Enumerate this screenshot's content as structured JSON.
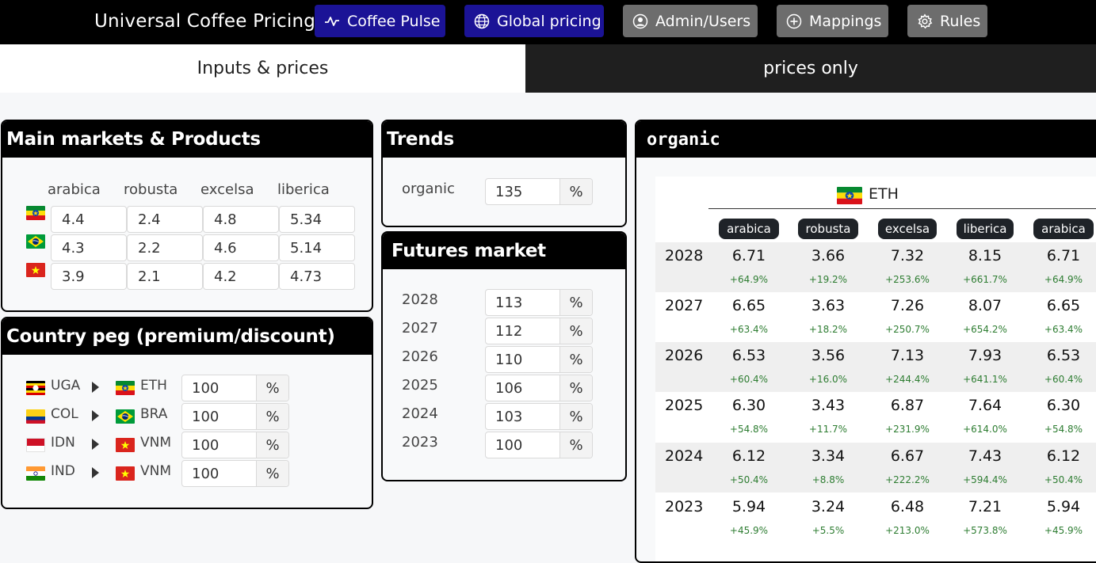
{
  "app": {
    "title": "Universal Coffee Pricing",
    "nav": [
      {
        "label": "Coffee Pulse",
        "icon": "pulse-icon",
        "style": "primary"
      },
      {
        "label": "Global pricing",
        "icon": "globe-icon",
        "style": "primary"
      },
      {
        "label": "Admin/Users",
        "icon": "user-icon",
        "style": "grey"
      },
      {
        "label": "Mappings",
        "icon": "plus-circle-icon",
        "style": "grey"
      },
      {
        "label": "Rules",
        "icon": "gear-icon",
        "style": "grey"
      }
    ]
  },
  "tabs": [
    {
      "label": "Inputs & prices",
      "active": true
    },
    {
      "label": "prices only",
      "active": false
    }
  ],
  "main_markets": {
    "title": "Main markets & Products",
    "columns": [
      "arabica",
      "robusta",
      "excelsa",
      "liberica"
    ],
    "rows": [
      {
        "flag": "ETH",
        "values": [
          "4.4",
          "2.4",
          "4.8",
          "5.34"
        ]
      },
      {
        "flag": "BRA",
        "values": [
          "4.3",
          "2.2",
          "4.6",
          "5.14"
        ]
      },
      {
        "flag": "VNM",
        "values": [
          "3.9",
          "2.1",
          "4.2",
          "4.73"
        ]
      }
    ]
  },
  "country_peg": {
    "title": "Country peg (premium/discount)",
    "rows": [
      {
        "from": "UGA",
        "to": "ETH",
        "value": "100",
        "unit": "%"
      },
      {
        "from": "COL",
        "to": "BRA",
        "value": "100",
        "unit": "%"
      },
      {
        "from": "IDN",
        "to": "VNM",
        "value": "100",
        "unit": "%"
      },
      {
        "from": "IND",
        "to": "VNM",
        "value": "100",
        "unit": "%"
      }
    ]
  },
  "trends": {
    "title": "Trends",
    "rows": [
      {
        "label": "organic",
        "value": "135",
        "unit": "%"
      }
    ]
  },
  "futures": {
    "title": "Futures market",
    "rows": [
      {
        "year": "2028",
        "value": "113",
        "unit": "%"
      },
      {
        "year": "2027",
        "value": "112",
        "unit": "%"
      },
      {
        "year": "2026",
        "value": "110",
        "unit": "%"
      },
      {
        "year": "2025",
        "value": "106",
        "unit": "%"
      },
      {
        "year": "2024",
        "value": "103",
        "unit": "%"
      },
      {
        "year": "2023",
        "value": "100",
        "unit": "%"
      }
    ]
  },
  "organic": {
    "title": "organic",
    "country": "ETH",
    "products": [
      "arabica",
      "robusta",
      "excelsa",
      "liberica",
      "arabica"
    ],
    "rows": [
      {
        "year": "2028",
        "values": [
          "6.71",
          "3.66",
          "7.32",
          "8.15",
          "6.71"
        ],
        "changes": [
          "+64.9%",
          "+19.2%",
          "+253.6%",
          "+661.7%",
          "+64.9%"
        ]
      },
      {
        "year": "2027",
        "values": [
          "6.65",
          "3.63",
          "7.26",
          "8.07",
          "6.65"
        ],
        "changes": [
          "+63.4%",
          "+18.2%",
          "+250.7%",
          "+654.2%",
          "+63.4%"
        ]
      },
      {
        "year": "2026",
        "values": [
          "6.53",
          "3.56",
          "7.13",
          "7.93",
          "6.53"
        ],
        "changes": [
          "+60.4%",
          "+16.0%",
          "+244.4%",
          "+641.1%",
          "+60.4%"
        ]
      },
      {
        "year": "2025",
        "values": [
          "6.30",
          "3.43",
          "6.87",
          "7.64",
          "6.30"
        ],
        "changes": [
          "+54.8%",
          "+11.7%",
          "+231.9%",
          "+614.0%",
          "+54.8%"
        ]
      },
      {
        "year": "2024",
        "values": [
          "6.12",
          "3.34",
          "6.67",
          "7.43",
          "6.12"
        ],
        "changes": [
          "+50.4%",
          "+8.8%",
          "+222.2%",
          "+594.4%",
          "+50.4%"
        ]
      },
      {
        "year": "2023",
        "values": [
          "5.94",
          "3.24",
          "6.48",
          "7.21",
          "5.94"
        ],
        "changes": [
          "+45.9%",
          "+5.5%",
          "+213.0%",
          "+573.8%",
          "+45.9%"
        ]
      }
    ]
  },
  "colors": {
    "primary_button": "#1b1396",
    "grey_button": "#6d6d6d",
    "positive_change": "#2e7d32",
    "pill": "#1f2328"
  }
}
